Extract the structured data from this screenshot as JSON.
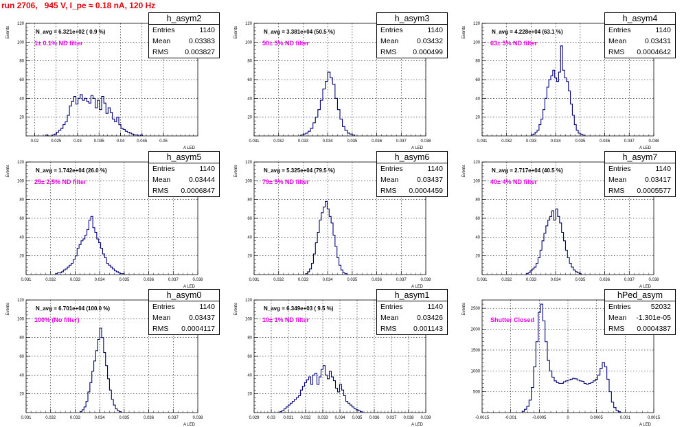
{
  "page": {
    "title": "run 2706,   945 V, I_pe ≈ 0.18 nA, 120 Hz"
  },
  "colors": {
    "title": "#e8000b",
    "hist": "#00007a",
    "label": "#e800e8",
    "grid": "#000000",
    "axis": "#000000"
  },
  "chart_data": [
    {
      "type": "histogram",
      "name": "h_asym2",
      "ylabel": "Events",
      "xlabel": "A_LED",
      "xlim": [
        0.018,
        0.058
      ],
      "ylim": [
        0,
        120
      ],
      "grid": true,
      "xticks": [
        0.02,
        0.025,
        0.03,
        0.035,
        0.04,
        0.045,
        0.05
      ],
      "xtick_labels": [
        "0.02",
        "0.025",
        "0.03",
        "0.035",
        "0.04",
        "0.045",
        "0.05"
      ],
      "yticks": [
        20,
        40,
        60,
        80,
        100,
        120
      ],
      "ytick_labels": [
        "20",
        "40",
        "60",
        "80",
        "100",
        "120"
      ],
      "navg": "N_avg = 6.321e+02 ( 0.9 %)",
      "filter": "1± 0.1% ND filter",
      "stats": {
        "name": "h_asym2",
        "entries_label": "Entries",
        "entries": "1140",
        "mean_label": "Mean",
        "mean": "0.03383",
        "rms_label": "RMS",
        "rms": "0.003827"
      },
      "bins": {
        "x0": 0.0226,
        "width": 0.0005,
        "counts": [
          1,
          0,
          0,
          1,
          2,
          4,
          6,
          8,
          12,
          15,
          22,
          32,
          37,
          42,
          34,
          40,
          44,
          38,
          40,
          37,
          35,
          43,
          40,
          30,
          38,
          28,
          42,
          35,
          24,
          30,
          25,
          18,
          15,
          20,
          12,
          8,
          7,
          5,
          4,
          3,
          2,
          1,
          1,
          0,
          1
        ]
      }
    },
    {
      "type": "histogram",
      "name": "h_asym3",
      "ylabel": "Events",
      "xlabel": "A_LED",
      "xlim": [
        0.031,
        0.038
      ],
      "ylim": [
        0,
        120
      ],
      "grid": true,
      "xticks": [
        0.031,
        0.032,
        0.033,
        0.034,
        0.035,
        0.036,
        0.037,
        0.038
      ],
      "xtick_labels": [
        "0.031",
        "0.032",
        "0.033",
        "0.034",
        "0.035",
        "0.036",
        "0.037",
        "0.038"
      ],
      "yticks": [
        20,
        40,
        60,
        80,
        100,
        120
      ],
      "ytick_labels": [
        "20",
        "40",
        "60",
        "80",
        "100",
        "120"
      ],
      "navg": "N_avg = 3.381e+04 (50.5 %)",
      "filter": "50± 5% ND filter",
      "stats": {
        "name": "h_asym3",
        "entries_label": "Entries",
        "entries": "1140",
        "mean_label": "Mean",
        "mean": "0.03432",
        "rms_label": "RMS",
        "rms": "0.000499"
      },
      "bins": {
        "x0": 0.0329,
        "width": 0.0001,
        "counts": [
          1,
          2,
          3,
          5,
          8,
          14,
          20,
          28,
          38,
          50,
          58,
          68,
          62,
          55,
          40,
          28,
          18,
          10,
          6,
          3,
          2,
          1
        ]
      }
    },
    {
      "type": "histogram",
      "name": "h_asym4",
      "ylabel": "Events",
      "xlabel": "A_LED",
      "xlim": [
        0.031,
        0.038
      ],
      "ylim": [
        0,
        120
      ],
      "grid": true,
      "xticks": [
        0.031,
        0.032,
        0.033,
        0.034,
        0.035,
        0.036,
        0.037,
        0.038
      ],
      "xtick_labels": [
        "0.031",
        "0.032",
        "0.033",
        "0.034",
        "0.035",
        "0.036",
        "0.037",
        "0.038"
      ],
      "yticks": [
        20,
        40,
        60,
        80,
        100,
        120
      ],
      "ytick_labels": [
        "20",
        "40",
        "60",
        "80",
        "100",
        "120"
      ],
      "navg": "N_avg = 4.228e+04 (63.1 %)",
      "filter": "63± 5% ND filter",
      "stats": {
        "name": "h_asym4",
        "entries_label": "Entries",
        "entries": "1140",
        "mean_label": "Mean",
        "mean": "0.03431",
        "rms_label": "RMS",
        "rms": "0.0004642"
      },
      "bins": {
        "x0": 0.033,
        "width": 8e-05,
        "counts": [
          1,
          2,
          4,
          6,
          12,
          18,
          28,
          40,
          52,
          60,
          64,
          70,
          62,
          58,
          68,
          96,
          70,
          62,
          58,
          48,
          34,
          22,
          12,
          6,
          3,
          2,
          1
        ]
      }
    },
    {
      "type": "histogram",
      "name": "h_asym5",
      "ylabel": "Events",
      "xlabel": "A_LED",
      "xlim": [
        0.031,
        0.038
      ],
      "ylim": [
        0,
        120
      ],
      "grid": true,
      "xticks": [
        0.031,
        0.032,
        0.033,
        0.034,
        0.035,
        0.036,
        0.037,
        0.038
      ],
      "xtick_labels": [
        "0.031",
        "0.032",
        "0.033",
        "0.034",
        "0.035",
        "0.036",
        "0.037",
        "0.038"
      ],
      "yticks": [
        20,
        40,
        60,
        80,
        100,
        120
      ],
      "ytick_labels": [
        "20",
        "40",
        "60",
        "80",
        "100",
        "120"
      ],
      "navg": "N_avg = 1.742e+04 (26.0 %)",
      "filter": "25± 2.5% ND filter",
      "stats": {
        "name": "h_asym5",
        "entries_label": "Entries",
        "entries": "1140",
        "mean_label": "Mean",
        "mean": "0.03444",
        "rms_label": "RMS",
        "rms": "0.0006847"
      },
      "bins": {
        "x0": 0.0322,
        "width": 8e-05,
        "counts": [
          1,
          2,
          2,
          3,
          5,
          6,
          8,
          10,
          12,
          16,
          20,
          28,
          32,
          36,
          38,
          42,
          48,
          58,
          62,
          50,
          45,
          38,
          34,
          28,
          22,
          18,
          12,
          10,
          8,
          6,
          4,
          3,
          2,
          1,
          1
        ]
      }
    },
    {
      "type": "histogram",
      "name": "h_asym6",
      "ylabel": "Events",
      "xlabel": "A_LED",
      "xlim": [
        0.031,
        0.038
      ],
      "ylim": [
        0,
        120
      ],
      "grid": true,
      "xticks": [
        0.031,
        0.032,
        0.033,
        0.034,
        0.035,
        0.036,
        0.037,
        0.038
      ],
      "xtick_labels": [
        "0.031",
        "0.032",
        "0.033",
        "0.034",
        "0.035",
        "0.036",
        "0.037",
        "0.038"
      ],
      "yticks": [
        20,
        40,
        60,
        80,
        100,
        120
      ],
      "ytick_labels": [
        "20",
        "40",
        "60",
        "80",
        "100",
        "120"
      ],
      "navg": "N_avg = 5.325e+04 (79.5 %)",
      "filter": "79± 5% ND filter",
      "stats": {
        "name": "h_asym6",
        "entries_label": "Entries",
        "entries": "1140",
        "mean_label": "Mean",
        "mean": "0.03437",
        "rms_label": "RMS",
        "rms": "0.0004459"
      },
      "bins": {
        "x0": 0.0331,
        "width": 8e-05,
        "counts": [
          1,
          3,
          6,
          12,
          22,
          34,
          45,
          58,
          66,
          72,
          78,
          70,
          62,
          55,
          42,
          30,
          18,
          10,
          5,
          2,
          1
        ]
      }
    },
    {
      "type": "histogram",
      "name": "h_asym7",
      "ylabel": "Events",
      "xlabel": "A_LED",
      "xlim": [
        0.031,
        0.038
      ],
      "ylim": [
        0,
        120
      ],
      "grid": true,
      "xticks": [
        0.031,
        0.032,
        0.033,
        0.034,
        0.035,
        0.036,
        0.037,
        0.038
      ],
      "xtick_labels": [
        "0.031",
        "0.032",
        "0.033",
        "0.034",
        "0.035",
        "0.036",
        "0.037",
        "0.038"
      ],
      "yticks": [
        20,
        40,
        60,
        80,
        100,
        120
      ],
      "ytick_labels": [
        "20",
        "40",
        "60",
        "80",
        "100",
        "120"
      ],
      "navg": "N_avg = 2.717e+04 (40.5 %)",
      "filter": "40± 4% ND filter",
      "stats": {
        "name": "h_asym7",
        "entries_label": "Entries",
        "entries": "1140",
        "mean_label": "Mean",
        "mean": "0.03417",
        "rms_label": "RMS",
        "rms": "0.0005577"
      },
      "bins": {
        "x0": 0.0328,
        "width": 8e-05,
        "counts": [
          1,
          2,
          4,
          6,
          8,
          12,
          18,
          26,
          36,
          44,
          52,
          58,
          62,
          68,
          58,
          70,
          62,
          55,
          45,
          36,
          26,
          18,
          12,
          8,
          5,
          3,
          2,
          1
        ]
      }
    },
    {
      "type": "histogram",
      "name": "h_asym0",
      "ylabel": "Events",
      "xlabel": "A_LED",
      "xlim": [
        0.031,
        0.038
      ],
      "ylim": [
        0,
        120
      ],
      "grid": true,
      "xticks": [
        0.031,
        0.032,
        0.033,
        0.034,
        0.035,
        0.036,
        0.037,
        0.038
      ],
      "xtick_labels": [
        "0.031",
        "0.032",
        "0.033",
        "0.034",
        "0.035",
        "0.036",
        "0.037",
        "0.038"
      ],
      "yticks": [
        20,
        40,
        60,
        80,
        100,
        120
      ],
      "ytick_labels": [
        "20",
        "40",
        "60",
        "80",
        "100",
        "120"
      ],
      "navg": "N_avg = 6.701e+04 (100.0 %)",
      "filter": "100% (No filter)",
      "stats": {
        "name": "h_asym0",
        "entries_label": "Entries",
        "entries": "1140",
        "mean_label": "Mean",
        "mean": "0.03437",
        "rms_label": "RMS",
        "rms": "0.0004117"
      },
      "bins": {
        "x0": 0.0332,
        "width": 8e-05,
        "counts": [
          1,
          3,
          6,
          12,
          22,
          32,
          44,
          55,
          66,
          78,
          90,
          80,
          64,
          50,
          36,
          24,
          14,
          8,
          4,
          2,
          1
        ]
      }
    },
    {
      "type": "histogram",
      "name": "h_asym1",
      "ylabel": "Events",
      "xlabel": "A_LED",
      "xlim": [
        0.029,
        0.039
      ],
      "ylim": [
        0,
        120
      ],
      "grid": true,
      "xticks": [
        0.029,
        0.03,
        0.031,
        0.032,
        0.033,
        0.034,
        0.035,
        0.036,
        0.037,
        0.038,
        0.039
      ],
      "xtick_labels": [
        "0.029",
        "0.03",
        "0.031",
        "0.032",
        "0.033",
        "0.034",
        "0.035",
        "0.036",
        "0.037",
        "0.038",
        "0.039"
      ],
      "yticks": [
        20,
        40,
        60,
        80,
        100,
        120
      ],
      "ytick_labels": [
        "20",
        "40",
        "60",
        "80",
        "100",
        "120"
      ],
      "navg": "N_avg = 6.349e+03 ( 9.5 %)",
      "filter": "10± 1% ND filter",
      "stats": {
        "name": "h_asym1",
        "entries_label": "Entries",
        "entries": "1140",
        "mean_label": "Mean",
        "mean": "0.03426",
        "rms_label": "RMS",
        "rms": "0.001143"
      },
      "bins": {
        "x0": 0.0305,
        "width": 0.00012,
        "counts": [
          1,
          2,
          4,
          6,
          8,
          10,
          12,
          14,
          16,
          18,
          24,
          28,
          32,
          35,
          38,
          30,
          40,
          42,
          30,
          38,
          46,
          50,
          40,
          36,
          44,
          38,
          34,
          26,
          22,
          30,
          24,
          18,
          12,
          10,
          8,
          6,
          4,
          3,
          2,
          1
        ]
      }
    },
    {
      "type": "histogram",
      "name": "hPed_asym",
      "ylabel": "Events",
      "xlabel": "A_LED",
      "xlim": [
        -0.0015,
        0.0015
      ],
      "ylim": [
        0,
        2700
      ],
      "grid": true,
      "xticks": [
        -0.0015,
        -0.001,
        -0.0005,
        0,
        0.0005,
        0.001,
        0.0015
      ],
      "xtick_labels": [
        "-0.0015",
        "-0.001",
        "-0.0005",
        "0",
        "0.0005",
        "0.001",
        "0.0015"
      ],
      "yticks": [
        500,
        1000,
        1500,
        2000,
        2500
      ],
      "ytick_labels": [
        "500",
        "1000",
        "1500",
        "2000",
        "2500"
      ],
      "navg": "",
      "filter": "Shutter Closed",
      "stats": {
        "name": "hPed_asym",
        "entries_label": "Entries",
        "entries": "52032",
        "mean_label": "Mean",
        "mean": "-1.301e-05",
        "rms_label": "RMS",
        "rms": "0.0004387"
      },
      "bins": {
        "x0": -0.0008,
        "width": 4e-05,
        "counts": [
          30,
          80,
          150,
          300,
          600,
          1100,
          1700,
          2400,
          2600,
          2200,
          1700,
          1250,
          1000,
          850,
          760,
          720,
          700,
          700,
          740,
          760,
          780,
          800,
          820,
          810,
          780,
          760,
          750,
          700,
          680,
          700,
          720,
          760,
          800,
          900,
          1060,
          1200,
          1100,
          800,
          500,
          250,
          120,
          50,
          20
        ]
      }
    }
  ]
}
